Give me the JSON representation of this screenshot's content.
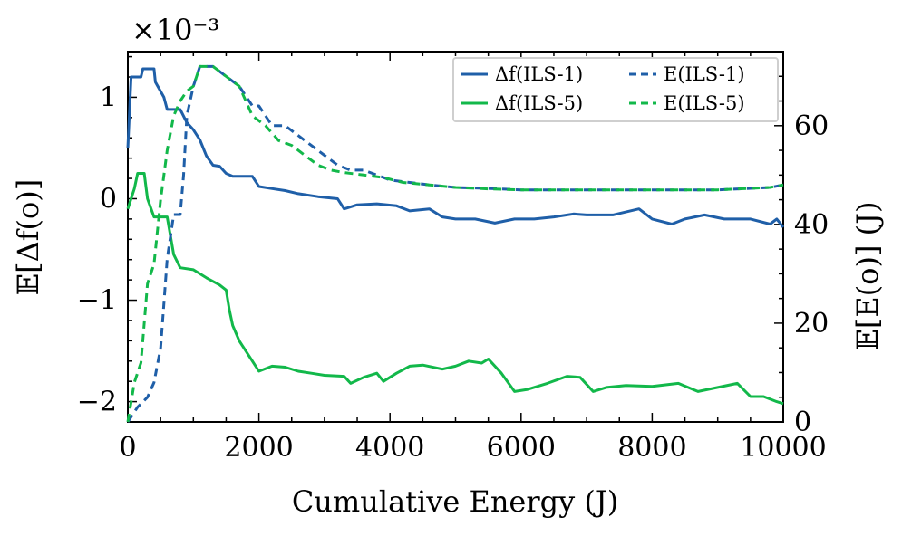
{
  "chart_data": {
    "type": "line",
    "xlabel": "Cumulative Energy (J)",
    "ylabel_left": "𝔼[Δf(o)]",
    "ylabel_right": "𝔼[E(o)] (J)",
    "left_multiplier": "×10⁻³",
    "xlim": [
      0,
      10000
    ],
    "ylim_left": [
      -2.2,
      1.45
    ],
    "ylim_right": [
      0,
      75
    ],
    "x_ticks": [
      "0",
      "2000",
      "4000",
      "6000",
      "8000",
      "10000"
    ],
    "y_left_ticks": [
      "1",
      "0",
      "−1",
      "−2"
    ],
    "y_right_ticks": [
      "0",
      "20",
      "40",
      "60"
    ],
    "legend_position": "top-right",
    "colors": {
      "blue": "#1f5fa8",
      "green": "#12b84a"
    },
    "series": [
      {
        "name": "Δf(ILS-1)",
        "axis": "left",
        "style": "solid",
        "color": "#1f5fa8",
        "points": [
          [
            0,
            0.5
          ],
          [
            50,
            1.2
          ],
          [
            200,
            1.2
          ],
          [
            230,
            1.28
          ],
          [
            400,
            1.28
          ],
          [
            420,
            1.15
          ],
          [
            550,
            1.0
          ],
          [
            600,
            0.88
          ],
          [
            800,
            0.88
          ],
          [
            900,
            0.75
          ],
          [
            1000,
            0.68
          ],
          [
            1100,
            0.58
          ],
          [
            1200,
            0.42
          ],
          [
            1300,
            0.33
          ],
          [
            1400,
            0.32
          ],
          [
            1500,
            0.25
          ],
          [
            1600,
            0.22
          ],
          [
            1700,
            0.22
          ],
          [
            1900,
            0.22
          ],
          [
            2000,
            0.12
          ],
          [
            2200,
            0.1
          ],
          [
            2400,
            0.08
          ],
          [
            2600,
            0.05
          ],
          [
            2900,
            0.02
          ],
          [
            3200,
            0.0
          ],
          [
            3300,
            -0.1
          ],
          [
            3500,
            -0.06
          ],
          [
            3800,
            -0.05
          ],
          [
            4100,
            -0.07
          ],
          [
            4300,
            -0.12
          ],
          [
            4600,
            -0.1
          ],
          [
            4800,
            -0.18
          ],
          [
            5000,
            -0.2
          ],
          [
            5300,
            -0.2
          ],
          [
            5600,
            -0.24
          ],
          [
            5900,
            -0.2
          ],
          [
            6200,
            -0.2
          ],
          [
            6500,
            -0.18
          ],
          [
            6800,
            -0.15
          ],
          [
            7000,
            -0.16
          ],
          [
            7400,
            -0.16
          ],
          [
            7800,
            -0.1
          ],
          [
            8000,
            -0.2
          ],
          [
            8300,
            -0.25
          ],
          [
            8500,
            -0.2
          ],
          [
            8800,
            -0.16
          ],
          [
            9100,
            -0.2
          ],
          [
            9500,
            -0.2
          ],
          [
            9800,
            -0.25
          ],
          [
            9900,
            -0.2
          ],
          [
            10000,
            -0.28
          ]
        ]
      },
      {
        "name": "Δf(ILS-5)",
        "axis": "left",
        "style": "solid",
        "color": "#12b84a",
        "points": [
          [
            0,
            -0.1
          ],
          [
            50,
            0.0
          ],
          [
            100,
            0.1
          ],
          [
            150,
            0.25
          ],
          [
            250,
            0.25
          ],
          [
            300,
            0.0
          ],
          [
            400,
            -0.18
          ],
          [
            500,
            -0.18
          ],
          [
            600,
            -0.18
          ],
          [
            700,
            -0.55
          ],
          [
            800,
            -0.68
          ],
          [
            1000,
            -0.7
          ],
          [
            1200,
            -0.78
          ],
          [
            1400,
            -0.85
          ],
          [
            1500,
            -0.9
          ],
          [
            1550,
            -1.1
          ],
          [
            1600,
            -1.25
          ],
          [
            1700,
            -1.4
          ],
          [
            1800,
            -1.5
          ],
          [
            1900,
            -1.6
          ],
          [
            2000,
            -1.7
          ],
          [
            2200,
            -1.65
          ],
          [
            2400,
            -1.66
          ],
          [
            2600,
            -1.7
          ],
          [
            2800,
            -1.72
          ],
          [
            3000,
            -1.74
          ],
          [
            3300,
            -1.75
          ],
          [
            3400,
            -1.82
          ],
          [
            3600,
            -1.76
          ],
          [
            3800,
            -1.72
          ],
          [
            3900,
            -1.8
          ],
          [
            4100,
            -1.72
          ],
          [
            4300,
            -1.65
          ],
          [
            4500,
            -1.64
          ],
          [
            4800,
            -1.68
          ],
          [
            5000,
            -1.65
          ],
          [
            5200,
            -1.6
          ],
          [
            5400,
            -1.62
          ],
          [
            5500,
            -1.58
          ],
          [
            5700,
            -1.72
          ],
          [
            5900,
            -1.9
          ],
          [
            6100,
            -1.88
          ],
          [
            6400,
            -1.82
          ],
          [
            6700,
            -1.75
          ],
          [
            6900,
            -1.76
          ],
          [
            7100,
            -1.9
          ],
          [
            7300,
            -1.86
          ],
          [
            7600,
            -1.84
          ],
          [
            8000,
            -1.85
          ],
          [
            8400,
            -1.82
          ],
          [
            8700,
            -1.9
          ],
          [
            9000,
            -1.86
          ],
          [
            9300,
            -1.82
          ],
          [
            9500,
            -1.95
          ],
          [
            9700,
            -1.95
          ],
          [
            9900,
            -2.0
          ],
          [
            10000,
            -2.02
          ]
        ]
      },
      {
        "name": "E(ILS-1)",
        "axis": "right",
        "style": "dashed",
        "color": "#1f5fa8",
        "points": [
          [
            0,
            0
          ],
          [
            150,
            3
          ],
          [
            300,
            5
          ],
          [
            400,
            8
          ],
          [
            500,
            15
          ],
          [
            600,
            33
          ],
          [
            700,
            42
          ],
          [
            800,
            42
          ],
          [
            850,
            50
          ],
          [
            900,
            62
          ],
          [
            1000,
            68
          ],
          [
            1100,
            72
          ],
          [
            1300,
            72
          ],
          [
            1500,
            70
          ],
          [
            1700,
            68
          ],
          [
            1900,
            64
          ],
          [
            2000,
            64
          ],
          [
            2200,
            60
          ],
          [
            2400,
            60
          ],
          [
            2600,
            58
          ],
          [
            2800,
            56
          ],
          [
            3000,
            54
          ],
          [
            3200,
            52
          ],
          [
            3400,
            51
          ],
          [
            3600,
            51
          ],
          [
            3800,
            50
          ],
          [
            4000,
            49
          ],
          [
            4300,
            48.5
          ],
          [
            4600,
            48
          ],
          [
            5000,
            47.5
          ],
          [
            5500,
            47.3
          ],
          [
            6000,
            47
          ],
          [
            7000,
            47
          ],
          [
            8000,
            47
          ],
          [
            9000,
            47
          ],
          [
            9800,
            47.5
          ],
          [
            10000,
            48
          ]
        ]
      },
      {
        "name": "E(ILS-5)",
        "axis": "right",
        "style": "dashed",
        "color": "#12b84a",
        "points": [
          [
            0,
            0
          ],
          [
            100,
            8
          ],
          [
            200,
            12
          ],
          [
            300,
            28
          ],
          [
            400,
            32
          ],
          [
            500,
            45
          ],
          [
            600,
            55
          ],
          [
            700,
            62
          ],
          [
            800,
            65
          ],
          [
            900,
            67
          ],
          [
            1000,
            68
          ],
          [
            1100,
            72
          ],
          [
            1300,
            72
          ],
          [
            1500,
            70
          ],
          [
            1700,
            68
          ],
          [
            1900,
            62
          ],
          [
            2100,
            60
          ],
          [
            2300,
            57
          ],
          [
            2500,
            56
          ],
          [
            2700,
            54
          ],
          [
            2900,
            52
          ],
          [
            3100,
            51
          ],
          [
            3300,
            50.5
          ],
          [
            3600,
            50
          ],
          [
            3900,
            49.5
          ],
          [
            4200,
            48.5
          ],
          [
            4600,
            48
          ],
          [
            5000,
            47.5
          ],
          [
            5500,
            47.2
          ],
          [
            6000,
            47
          ],
          [
            7000,
            47
          ],
          [
            8000,
            47
          ],
          [
            9000,
            47
          ],
          [
            9800,
            47.5
          ],
          [
            10000,
            48
          ]
        ]
      }
    ]
  }
}
